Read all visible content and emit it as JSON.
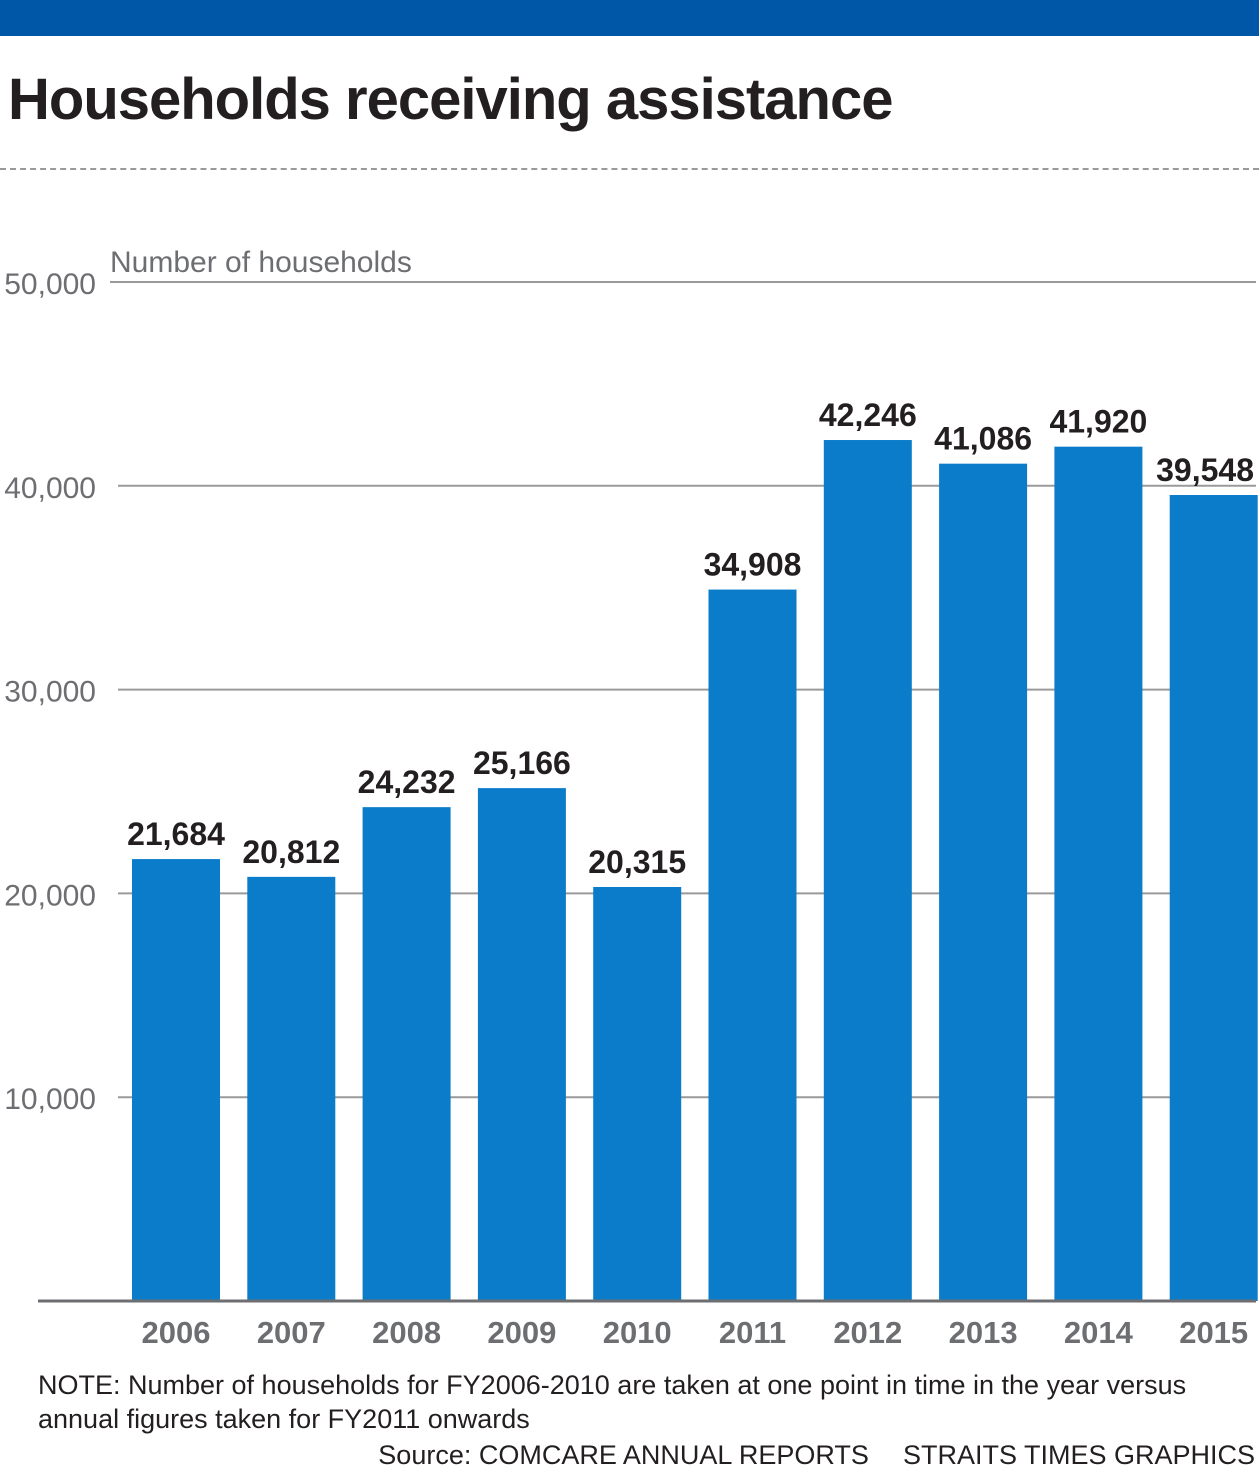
{
  "colors": {
    "header_bar": "#0057a8",
    "bar": "#0a7cc9",
    "gridline": "#9a9a9a",
    "axis_text": "#6d6e71",
    "label_text": "#231f20"
  },
  "title": "Households receiving assistance",
  "note": "NOTE: Number of households for FY2006-2010 are taken at one point in time in the year versus annual figures taken for FY2011 onwards",
  "source": "Source: COMCARE ANNUAL REPORTS",
  "credit": "STRAITS TIMES GRAPHICS",
  "chart_data": {
    "type": "bar",
    "title": "Households receiving assistance",
    "ylabel": "Number of households",
    "xlabel": "",
    "categories": [
      "2006",
      "2007",
      "2008",
      "2009",
      "2010",
      "2011",
      "2012",
      "2013",
      "2014",
      "2015"
    ],
    "values": [
      21684,
      20812,
      24232,
      25166,
      20315,
      34908,
      42246,
      41086,
      41920,
      39548
    ],
    "value_labels": [
      "21,684",
      "20,812",
      "24,232",
      "25,166",
      "20,315",
      "34,908",
      "42,246",
      "41,086",
      "41,920",
      "39,548"
    ],
    "yticks": [
      10000,
      20000,
      30000,
      40000,
      50000
    ],
    "ytick_labels": [
      "10,000",
      "20,000",
      "30,000",
      "40,000",
      "50,000"
    ],
    "ylim": [
      0,
      50000
    ],
    "grid": true,
    "legend": "none"
  }
}
